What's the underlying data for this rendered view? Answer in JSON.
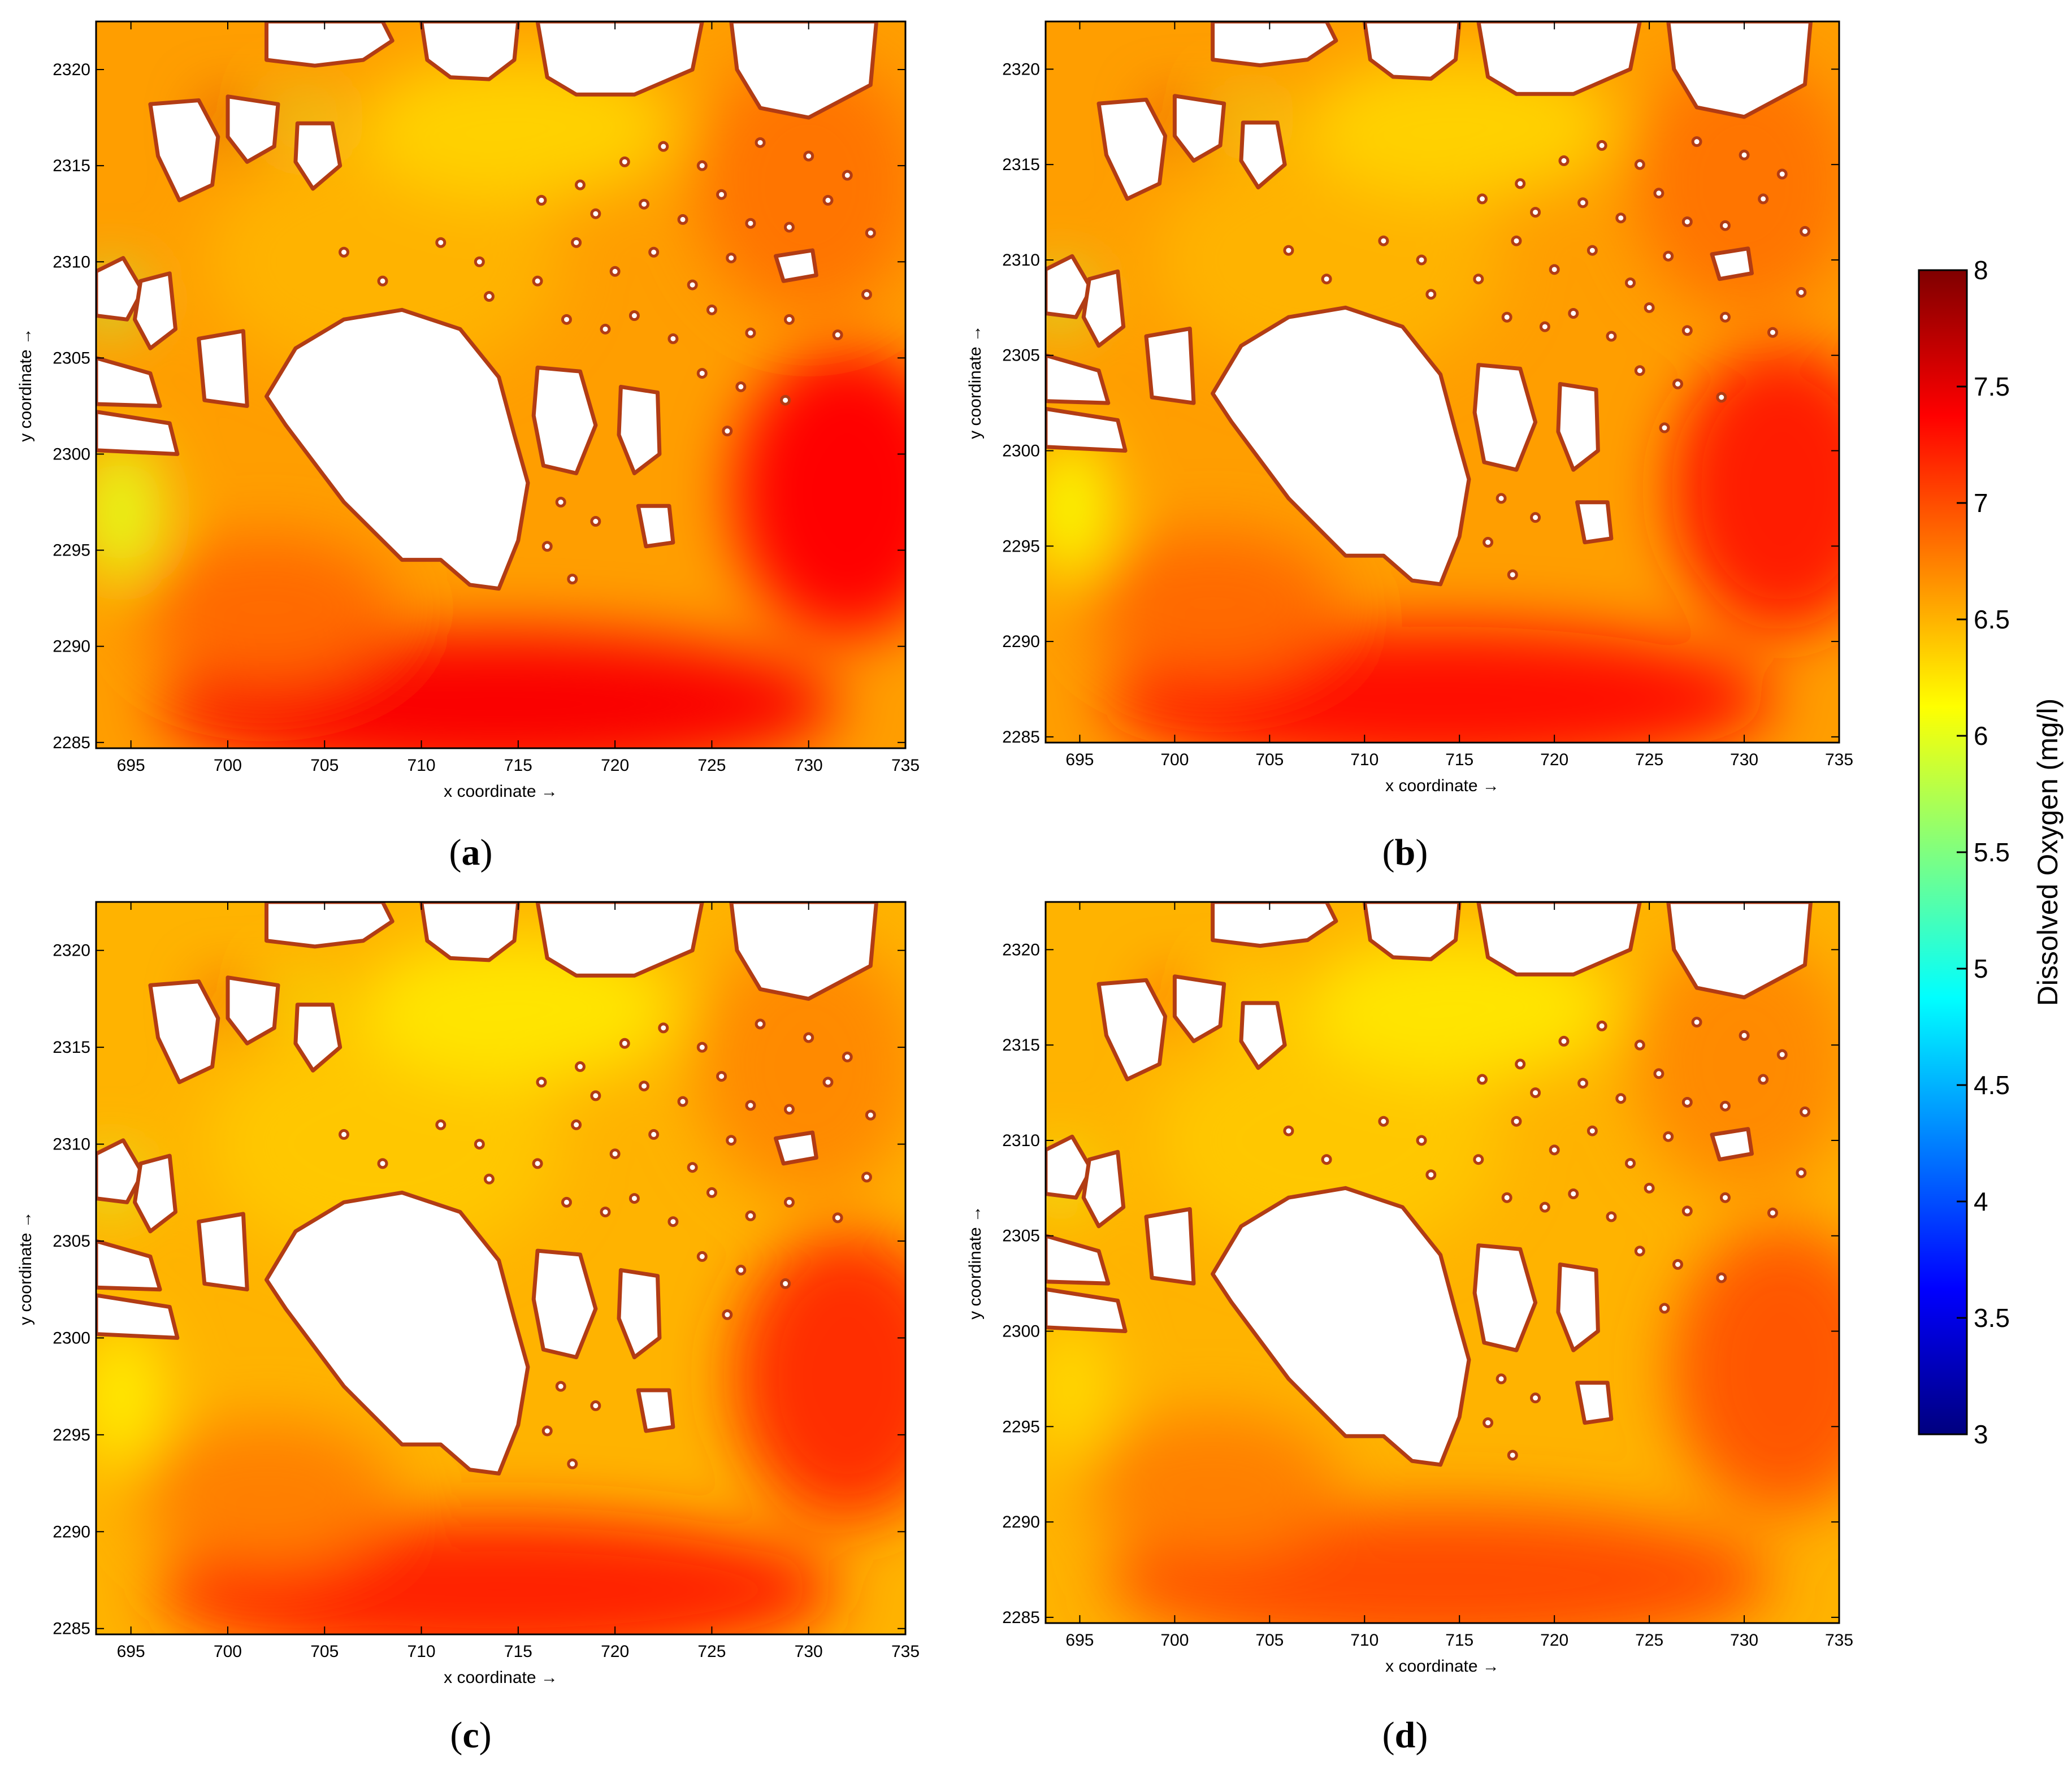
{
  "chart_data": {
    "type": "heatmap",
    "xlabel": "x coordinate →",
    "ylabel": "y coordinate →",
    "xlim": [
      693.2,
      735
    ],
    "ylim": [
      2284.7,
      2322.5
    ],
    "xticks": [
      695,
      700,
      705,
      710,
      715,
      720,
      725,
      730,
      735
    ],
    "yticks": [
      2285,
      2290,
      2295,
      2300,
      2305,
      2310,
      2315,
      2320
    ],
    "colorbar": {
      "label": "Dissolved Oxygen (mg/l)",
      "range": [
        3,
        8
      ],
      "ticks": [
        3,
        3.5,
        4,
        4.5,
        5,
        5.5,
        6,
        6.5,
        7,
        7.5,
        8
      ],
      "colormap": "jet"
    },
    "coastline_color": "#b23c14",
    "panels": [
      {
        "letter": "a",
        "south_do": 7.4,
        "west_do": 6.0,
        "shore_do": 6.6
      },
      {
        "letter": "b",
        "south_do": 7.3,
        "west_do": 6.1,
        "shore_do": 6.6
      },
      {
        "letter": "c",
        "south_do": 7.2,
        "west_do": 6.2,
        "shore_do": 6.5
      },
      {
        "letter": "d",
        "south_do": 7.0,
        "west_do": 6.3,
        "shore_do": 6.5
      }
    ]
  }
}
